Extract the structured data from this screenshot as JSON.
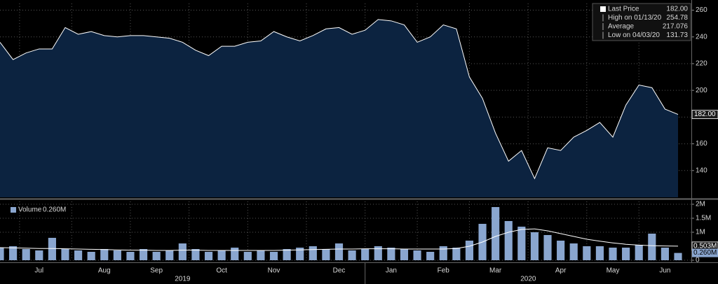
{
  "chart_data": [
    {
      "type": "area",
      "series": [
        {
          "name": "Last Price",
          "color": "#ffffff",
          "fill": "#0c2340",
          "values": [
            236,
            223,
            228,
            231,
            231,
            247,
            242,
            244,
            241,
            240,
            241,
            241,
            240,
            239,
            236,
            230,
            226,
            233,
            233,
            236,
            237,
            244,
            240,
            237,
            241,
            246,
            247,
            242,
            245,
            253,
            252,
            249,
            236,
            240,
            249,
            246,
            210,
            194,
            168,
            147,
            155,
            134,
            157,
            155,
            165,
            170,
            176,
            165,
            189,
            204,
            202,
            186,
            182
          ]
        }
      ],
      "stats": [
        {
          "label": "Last Price",
          "value": "182.00"
        },
        {
          "label": "High on 01/13/20",
          "value": "254.78"
        },
        {
          "label": "Average",
          "value": "217.076"
        },
        {
          "label": "Low on 04/03/20",
          "value": "131.73"
        }
      ],
      "ylim": [
        120,
        265
      ],
      "yticks": [
        140,
        160,
        180,
        200,
        220,
        240,
        260
      ],
      "grid": true
    },
    {
      "type": "bar",
      "categories": [
        null,
        null,
        null,
        "Jul",
        null,
        null,
        null,
        null,
        "Aug",
        null,
        null,
        null,
        "Sep",
        null,
        null,
        null,
        null,
        "Oct",
        null,
        null,
        null,
        "Nov",
        null,
        null,
        null,
        null,
        "Dec",
        null,
        null,
        null,
        "Jan",
        null,
        null,
        null,
        "Feb",
        null,
        null,
        null,
        "Mar",
        null,
        null,
        null,
        null,
        "Apr",
        null,
        null,
        null,
        "May",
        null,
        null,
        null,
        "Jun",
        null
      ],
      "years": [
        "2019",
        "2020"
      ],
      "series": [
        {
          "name": "Volume",
          "color": "#8aa6cf",
          "legend_value": "0.260M",
          "values": [
            450000,
            500000,
            400000,
            350000,
            800000,
            400000,
            350000,
            300000,
            400000,
            350000,
            300000,
            400000,
            300000,
            350000,
            600000,
            400000,
            300000,
            350000,
            450000,
            300000,
            350000,
            300000,
            400000,
            450000,
            500000,
            400000,
            600000,
            350000,
            400000,
            500000,
            450000,
            400000,
            350000,
            300000,
            500000,
            450000,
            700000,
            1300000,
            1900000,
            1400000,
            1200000,
            1000000,
            900000,
            700000,
            600000,
            500000,
            500000,
            450000,
            450000,
            550000,
            950000,
            450000,
            260000
          ]
        },
        {
          "type": "line",
          "color": "#ffffff",
          "last_label": "0.503M",
          "values": [
            450000,
            440000,
            430000,
            420000,
            420000,
            410000,
            400000,
            390000,
            380000,
            370000,
            360000,
            360000,
            350000,
            350000,
            360000,
            360000,
            350000,
            350000,
            350000,
            350000,
            350000,
            350000,
            360000,
            370000,
            380000,
            390000,
            400000,
            400000,
            410000,
            410000,
            410000,
            400000,
            400000,
            400000,
            400000,
            420000,
            500000,
            650000,
            850000,
            1000000,
            1100000,
            1120000,
            1050000,
            950000,
            850000,
            750000,
            680000,
            620000,
            570000,
            540000,
            520000,
            510000,
            503000
          ]
        }
      ],
      "ylim": [
        0,
        2100000
      ],
      "yticks": [
        0,
        {
          "value": 1000000,
          "label": "1M"
        },
        {
          "value": 1500000,
          "label": "1.5M"
        },
        {
          "value": 2000000,
          "label": "2M"
        }
      ],
      "grid": true
    }
  ]
}
